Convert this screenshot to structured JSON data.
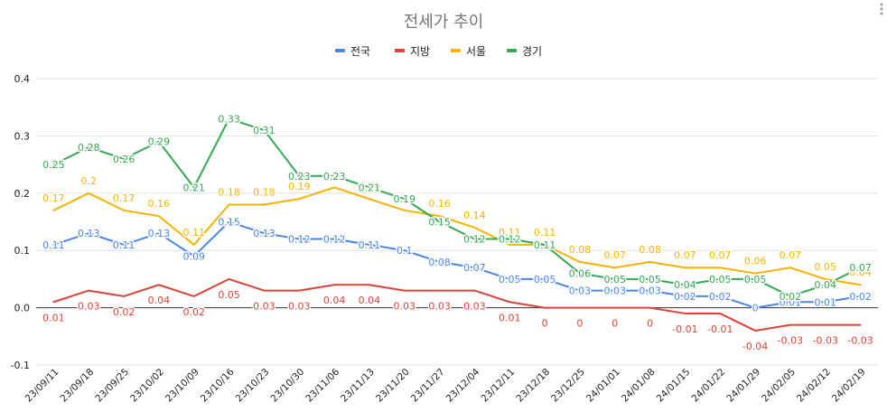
{
  "chart_data": {
    "type": "line",
    "title": "전세가 추이",
    "xlabel": "",
    "ylabel": "",
    "ylim": [
      -0.1,
      0.4
    ],
    "yticks": [
      "-0.1",
      "0.0",
      "0.1",
      "0.2",
      "0.3",
      "0.4"
    ],
    "grid": true,
    "legend_position": "top",
    "categories": [
      "23/09/11",
      "23/09/18",
      "23/09/25",
      "23/10/02",
      "23/10/09",
      "23/10/16",
      "23/10/23",
      "23/10/30",
      "23/11/06",
      "23/11/13",
      "23/11/20",
      "23/11/27",
      "23/12/04",
      "23/12/11",
      "23/12/18",
      "23/12/25",
      "24/01/01",
      "24/01/08",
      "24/01/15",
      "24/01/22",
      "24/01/29",
      "24/02/05",
      "24/02/12",
      "24/02/19"
    ],
    "series": [
      {
        "name": "전국",
        "color": "#4a86e8",
        "values": [
          0.11,
          0.13,
          0.11,
          0.13,
          0.09,
          0.15,
          0.13,
          0.12,
          0.12,
          0.11,
          0.1,
          0.08,
          0.07,
          0.05,
          0.05,
          0.03,
          0.03,
          0.03,
          0.02,
          0.02,
          0.0,
          0.01,
          0.01,
          0.02
        ],
        "labels": [
          "0.11",
          "0.13",
          "0.11",
          "0.13",
          "0.09",
          "0.15",
          "0.13",
          "0.12",
          "0.12",
          "0.11",
          "0.1",
          "0.08",
          "0.07",
          "0.05",
          "0.05",
          "0.03",
          "0.03",
          "0.03",
          "0.02",
          "0.02",
          "0",
          "0.01",
          "0.01",
          "0.02"
        ]
      },
      {
        "name": "지방",
        "color": "#db4437",
        "values": [
          0.01,
          0.03,
          0.02,
          0.04,
          0.02,
          0.05,
          0.03,
          0.03,
          0.04,
          0.04,
          0.03,
          0.03,
          0.03,
          0.01,
          0.0,
          0.0,
          0.0,
          0.0,
          -0.01,
          -0.01,
          -0.04,
          -0.03,
          -0.03,
          -0.03
        ],
        "labels": [
          "0.01",
          "0.03",
          "0.02",
          "0.04",
          "0.02",
          "0.05",
          "0.03",
          "0.03",
          "0.04",
          "0.04",
          "0.03",
          "0.03",
          "0.03",
          "0.01",
          "0",
          "0",
          "0",
          "0",
          "-0.01",
          "-0.01",
          "-0.04",
          "-0.03",
          "-0.03",
          "-0.03"
        ]
      },
      {
        "name": "서울",
        "color": "#f4b400",
        "values": [
          0.17,
          0.2,
          0.17,
          0.16,
          0.11,
          0.18,
          0.18,
          0.19,
          0.21,
          0.19,
          0.17,
          0.16,
          0.14,
          0.11,
          0.11,
          0.08,
          0.07,
          0.08,
          0.07,
          0.07,
          0.06,
          0.07,
          0.05,
          0.04
        ],
        "labels": [
          "0.17",
          "0.2",
          "0.17",
          "0.16",
          "0.11",
          "0.18",
          "0.18",
          "0.19",
          "0.21",
          "0.19",
          "0.17",
          "0.16",
          "0.14",
          "0.11",
          "0.11",
          "0.08",
          "0.07",
          "0.08",
          "0.07",
          "0.07",
          "0.06",
          "0.07",
          "0.05",
          "0.04"
        ]
      },
      {
        "name": "경기",
        "color": "#34a853",
        "values": [
          0.25,
          0.28,
          0.26,
          0.29,
          0.21,
          0.33,
          0.31,
          0.23,
          0.23,
          0.21,
          0.19,
          0.15,
          0.12,
          0.12,
          0.11,
          0.06,
          0.05,
          0.05,
          0.04,
          0.05,
          0.05,
          0.02,
          0.04,
          0.07
        ],
        "labels": [
          "0.25",
          "0.28",
          "0.26",
          "0.29",
          "0.21",
          "0.33",
          "0.31",
          "0.23",
          "0.23",
          "0.21",
          "0.19",
          "0.15",
          "0.12",
          "0.12",
          "0.11",
          "0.06",
          "0.05",
          "0.05",
          "0.04",
          "0.05",
          "0.05",
          "0.02",
          "0.04",
          "0.07"
        ]
      }
    ]
  }
}
